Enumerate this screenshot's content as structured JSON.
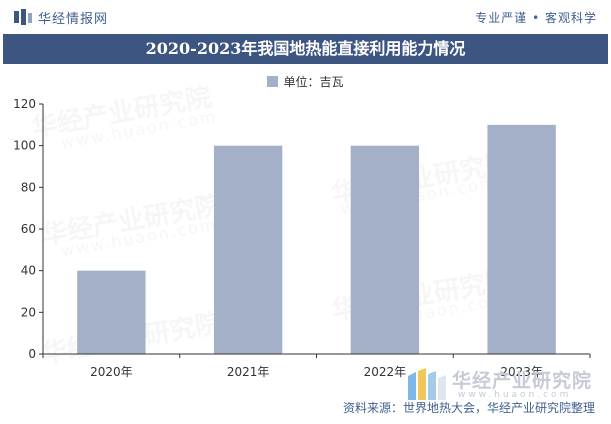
{
  "header": {
    "brand": "华经情报网",
    "tagline": "专业严谨 • 客观科学",
    "title": "2020-2023年我国地热能直接利用能力情况"
  },
  "watermark": {
    "text": "华经产业研究院",
    "url": "www.huaon.com"
  },
  "footer": {
    "source": "资料来源：世界地热大会，华经产业研究院整理"
  },
  "colors": {
    "bar": "#a3b0c8",
    "title_bg": "#3d5581",
    "brand_text": "#3f5f8f"
  },
  "chart_data": {
    "type": "bar",
    "title": "2020-2023年我国地热能直接利用能力情况",
    "categories": [
      "2020年",
      "2021年",
      "2022年",
      "2023年"
    ],
    "series": [
      {
        "name": "单位：吉瓦",
        "values": [
          40,
          100,
          100,
          110
        ]
      }
    ],
    "ylim": [
      0,
      120
    ],
    "yticks": [
      0,
      20,
      40,
      60,
      80,
      100,
      120
    ],
    "grid": false,
    "legend": "top-center"
  }
}
